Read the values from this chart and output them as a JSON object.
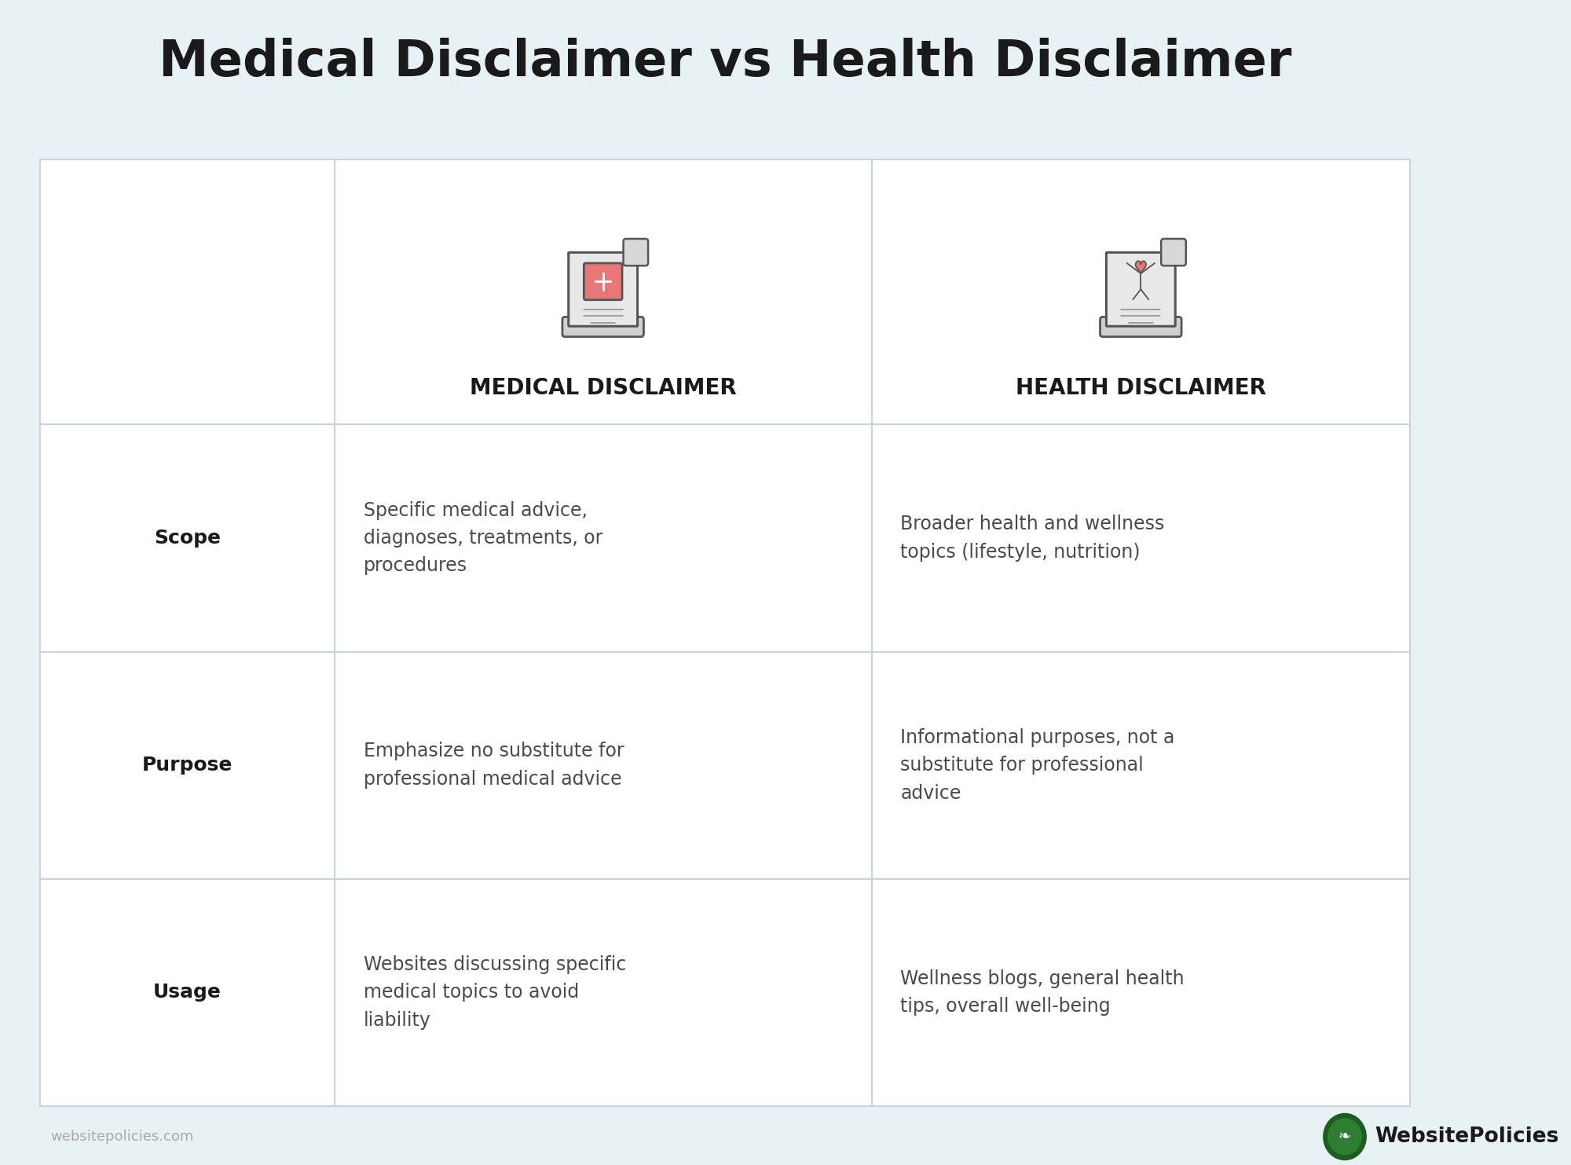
{
  "title": "Medical Disclaimer vs Health Disclaimer",
  "background_color": "#e8f1f3",
  "table_bg": "#ffffff",
  "border_color": "#c8d4d8",
  "title_color": "#1a1a1a",
  "title_fontsize": 46,
  "header_label_color": "#1a1a1a",
  "header_label_fontsize": 20,
  "row_label_color": "#1a1a1a",
  "row_label_fontsize": 18,
  "cell_text_color": "#4a4a4a",
  "cell_text_fontsize": 17,
  "watermark_text": "websitepolicies.com",
  "watermark_color": "#aaaaaa",
  "brand_text": "WebsitePolicies",
  "brand_color": "#1a1a1a",
  "col1_header": "MEDICAL DISCLAIMER",
  "col2_header": "HEALTH DISCLAIMER",
  "rows": [
    {
      "label": "Scope",
      "col1": "Specific medical advice,\ndiagnoses, treatments, or\nprocedures",
      "col2": "Broader health and wellness\ntopics (lifestyle, nutrition)"
    },
    {
      "label": "Purpose",
      "col1": "Emphasize no substitute for\nprofessional medical advice",
      "col2": "Informational purposes, not a\nsubstitute for professional\nadvice"
    },
    {
      "label": "Usage",
      "col1": "Websites discussing specific\nmedical topics to avoid\nliability",
      "col2": "Wellness blogs, general health\ntips, overall well-being"
    }
  ]
}
